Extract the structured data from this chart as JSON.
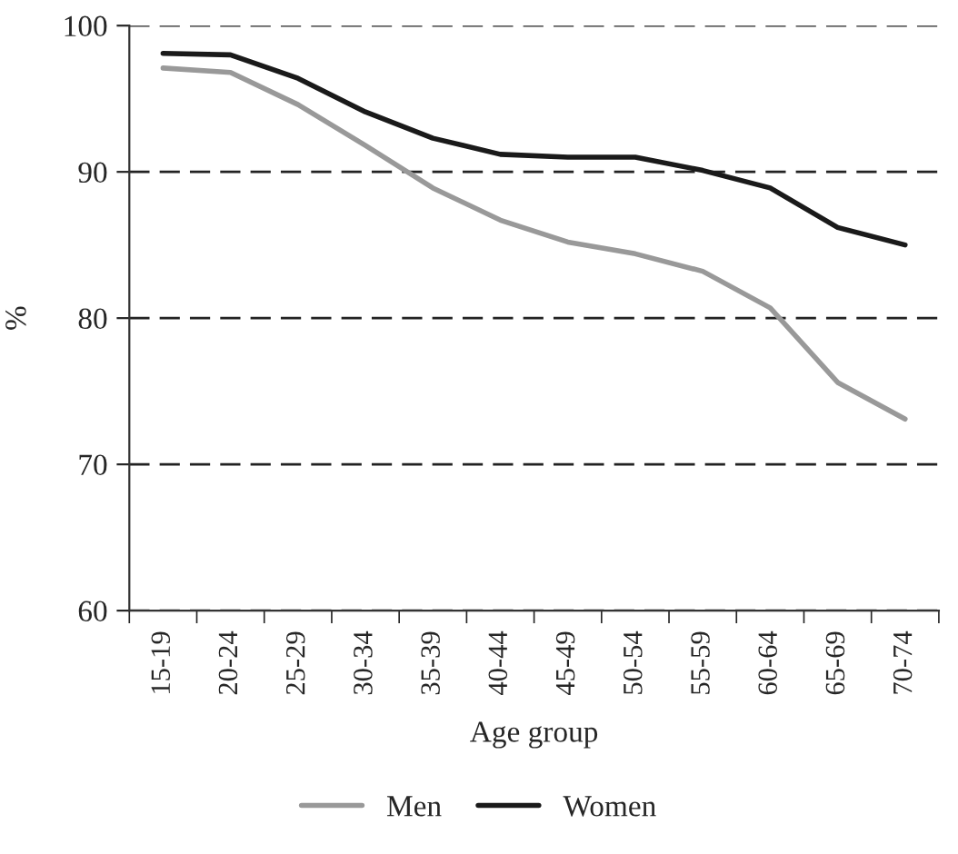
{
  "chart_data": {
    "type": "line",
    "xlabel": "Age group",
    "ylabel": "%",
    "categories": [
      "15-19",
      "20-24",
      "25-29",
      "30-34",
      "35-39",
      "40-44",
      "45-49",
      "50-54",
      "55-59",
      "60-64",
      "65-69",
      "70-74"
    ],
    "series": [
      {
        "name": "Men",
        "color": "#999999",
        "values": [
          97.1,
          96.8,
          94.6,
          91.8,
          88.9,
          86.7,
          85.2,
          84.4,
          83.2,
          80.7,
          75.6,
          73.1
        ]
      },
      {
        "name": "Women",
        "color": "#1a1a1a",
        "values": [
          98.1,
          98.0,
          96.4,
          94.1,
          92.3,
          91.2,
          91.0,
          91.0,
          90.1,
          88.9,
          86.2,
          85.0
        ]
      }
    ],
    "ylim": [
      60,
      100
    ],
    "yticks": [
      60,
      70,
      80,
      90,
      100
    ],
    "grid": "y",
    "legend": "bottom",
    "marker": "none",
    "line_style": "solid"
  }
}
